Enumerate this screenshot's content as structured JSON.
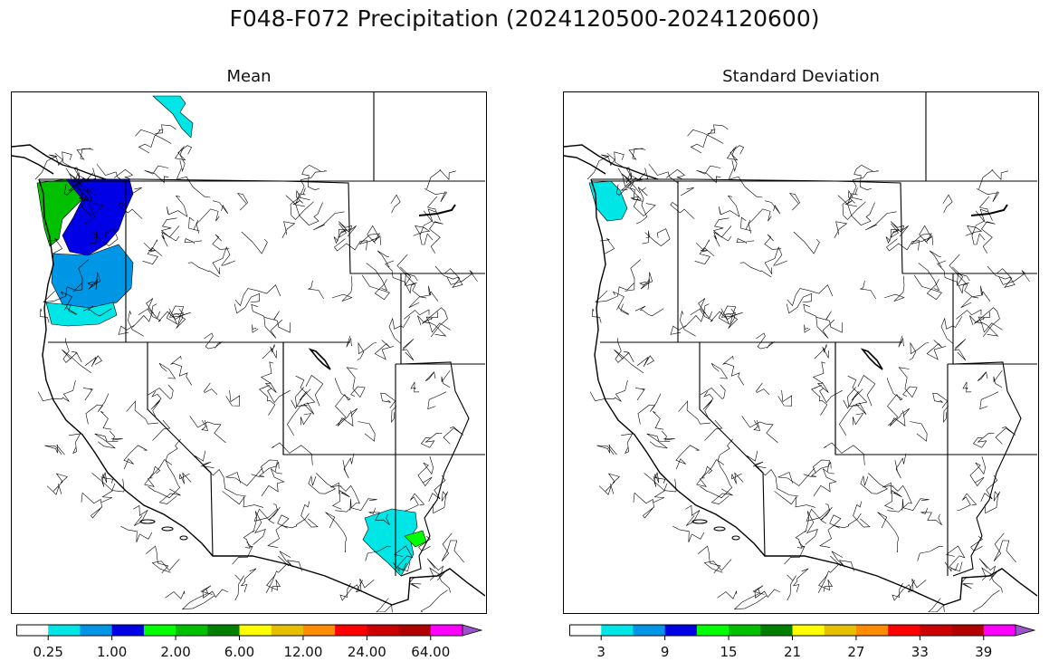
{
  "figure": {
    "title": "F048-F072 Precipitation (2024120500-2024120600)"
  },
  "panels": [
    {
      "title": "Mean",
      "colorbar": {
        "colors": [
          "#ffffff",
          "#00e5e5",
          "#0096e6",
          "#0000e6",
          "#00ff00",
          "#00c000",
          "#008000",
          "#ffff00",
          "#e6c000",
          "#ff8c00",
          "#ff0000",
          "#cc0000",
          "#b00000",
          "#ff00ff",
          "#9955c8"
        ],
        "tick_labels": [
          "0.25",
          "1.00",
          "2.00",
          "6.00",
          "12.00",
          "24.00",
          "64.00"
        ],
        "extend": "max"
      },
      "shaded_regions": [
        {
          "name": "olympic-peninsula-coast",
          "color": "#00c000"
        },
        {
          "name": "puget-sound-cascades",
          "color": "#0000e6"
        },
        {
          "name": "western-oregon",
          "color": "#0096e6"
        },
        {
          "name": "oregon-fringe",
          "color": "#00e5e5"
        },
        {
          "name": "bc-inland-basin",
          "color": "#00e5e5"
        },
        {
          "name": "arizona-mogollon-rim",
          "color": "#00e5e5"
        },
        {
          "name": "arizona-east",
          "color": "#00ff00"
        }
      ]
    },
    {
      "title": "Standard Deviation",
      "colorbar": {
        "colors": [
          "#ffffff",
          "#00e5e5",
          "#0096e6",
          "#0000e6",
          "#00ff00",
          "#00c000",
          "#008000",
          "#ffff00",
          "#e6c000",
          "#ff8c00",
          "#ff0000",
          "#cc0000",
          "#b00000",
          "#ff00ff",
          "#9955c8"
        ],
        "tick_labels": [
          "3",
          "9",
          "15",
          "21",
          "27",
          "33",
          "39"
        ],
        "extend": "max"
      },
      "shaded_regions": [
        {
          "name": "washington-coast",
          "color": "#00e5e5"
        }
      ]
    }
  ]
}
